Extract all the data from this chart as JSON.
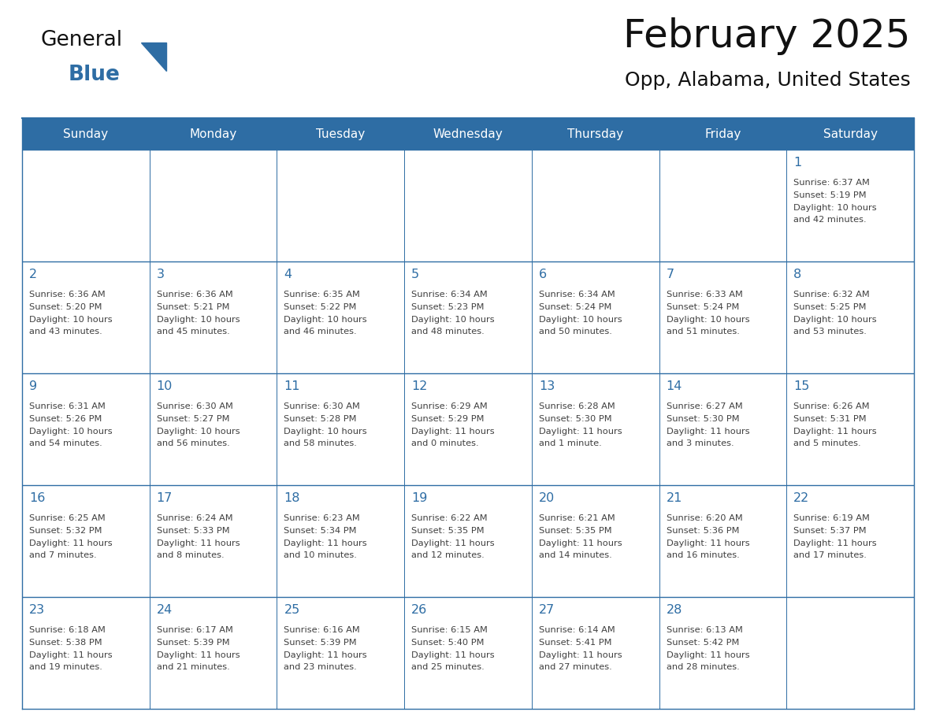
{
  "title": "February 2025",
  "subtitle": "Opp, Alabama, United States",
  "header_bg": "#2E6DA4",
  "header_text_color": "#FFFFFF",
  "cell_bg": "#FFFFFF",
  "day_number_color": "#2E6DA4",
  "cell_text_color": "#404040",
  "line_color": "#2E6DA4",
  "days_of_week": [
    "Sunday",
    "Monday",
    "Tuesday",
    "Wednesday",
    "Thursday",
    "Friday",
    "Saturday"
  ],
  "calendar_data": [
    [
      null,
      null,
      null,
      null,
      null,
      null,
      {
        "day": "1",
        "sunrise": "6:37 AM",
        "sunset": "5:19 PM",
        "daylight1": "Daylight: 10 hours",
        "daylight2": "and 42 minutes."
      }
    ],
    [
      {
        "day": "2",
        "sunrise": "6:36 AM",
        "sunset": "5:20 PM",
        "daylight1": "Daylight: 10 hours",
        "daylight2": "and 43 minutes."
      },
      {
        "day": "3",
        "sunrise": "6:36 AM",
        "sunset": "5:21 PM",
        "daylight1": "Daylight: 10 hours",
        "daylight2": "and 45 minutes."
      },
      {
        "day": "4",
        "sunrise": "6:35 AM",
        "sunset": "5:22 PM",
        "daylight1": "Daylight: 10 hours",
        "daylight2": "and 46 minutes."
      },
      {
        "day": "5",
        "sunrise": "6:34 AM",
        "sunset": "5:23 PM",
        "daylight1": "Daylight: 10 hours",
        "daylight2": "and 48 minutes."
      },
      {
        "day": "6",
        "sunrise": "6:34 AM",
        "sunset": "5:24 PM",
        "daylight1": "Daylight: 10 hours",
        "daylight2": "and 50 minutes."
      },
      {
        "day": "7",
        "sunrise": "6:33 AM",
        "sunset": "5:24 PM",
        "daylight1": "Daylight: 10 hours",
        "daylight2": "and 51 minutes."
      },
      {
        "day": "8",
        "sunrise": "6:32 AM",
        "sunset": "5:25 PM",
        "daylight1": "Daylight: 10 hours",
        "daylight2": "and 53 minutes."
      }
    ],
    [
      {
        "day": "9",
        "sunrise": "6:31 AM",
        "sunset": "5:26 PM",
        "daylight1": "Daylight: 10 hours",
        "daylight2": "and 54 minutes."
      },
      {
        "day": "10",
        "sunrise": "6:30 AM",
        "sunset": "5:27 PM",
        "daylight1": "Daylight: 10 hours",
        "daylight2": "and 56 minutes."
      },
      {
        "day": "11",
        "sunrise": "6:30 AM",
        "sunset": "5:28 PM",
        "daylight1": "Daylight: 10 hours",
        "daylight2": "and 58 minutes."
      },
      {
        "day": "12",
        "sunrise": "6:29 AM",
        "sunset": "5:29 PM",
        "daylight1": "Daylight: 11 hours",
        "daylight2": "and 0 minutes."
      },
      {
        "day": "13",
        "sunrise": "6:28 AM",
        "sunset": "5:30 PM",
        "daylight1": "Daylight: 11 hours",
        "daylight2": "and 1 minute."
      },
      {
        "day": "14",
        "sunrise": "6:27 AM",
        "sunset": "5:30 PM",
        "daylight1": "Daylight: 11 hours",
        "daylight2": "and 3 minutes."
      },
      {
        "day": "15",
        "sunrise": "6:26 AM",
        "sunset": "5:31 PM",
        "daylight1": "Daylight: 11 hours",
        "daylight2": "and 5 minutes."
      }
    ],
    [
      {
        "day": "16",
        "sunrise": "6:25 AM",
        "sunset": "5:32 PM",
        "daylight1": "Daylight: 11 hours",
        "daylight2": "and 7 minutes."
      },
      {
        "day": "17",
        "sunrise": "6:24 AM",
        "sunset": "5:33 PM",
        "daylight1": "Daylight: 11 hours",
        "daylight2": "and 8 minutes."
      },
      {
        "day": "18",
        "sunrise": "6:23 AM",
        "sunset": "5:34 PM",
        "daylight1": "Daylight: 11 hours",
        "daylight2": "and 10 minutes."
      },
      {
        "day": "19",
        "sunrise": "6:22 AM",
        "sunset": "5:35 PM",
        "daylight1": "Daylight: 11 hours",
        "daylight2": "and 12 minutes."
      },
      {
        "day": "20",
        "sunrise": "6:21 AM",
        "sunset": "5:35 PM",
        "daylight1": "Daylight: 11 hours",
        "daylight2": "and 14 minutes."
      },
      {
        "day": "21",
        "sunrise": "6:20 AM",
        "sunset": "5:36 PM",
        "daylight1": "Daylight: 11 hours",
        "daylight2": "and 16 minutes."
      },
      {
        "day": "22",
        "sunrise": "6:19 AM",
        "sunset": "5:37 PM",
        "daylight1": "Daylight: 11 hours",
        "daylight2": "and 17 minutes."
      }
    ],
    [
      {
        "day": "23",
        "sunrise": "6:18 AM",
        "sunset": "5:38 PM",
        "daylight1": "Daylight: 11 hours",
        "daylight2": "and 19 minutes."
      },
      {
        "day": "24",
        "sunrise": "6:17 AM",
        "sunset": "5:39 PM",
        "daylight1": "Daylight: 11 hours",
        "daylight2": "and 21 minutes."
      },
      {
        "day": "25",
        "sunrise": "6:16 AM",
        "sunset": "5:39 PM",
        "daylight1": "Daylight: 11 hours",
        "daylight2": "and 23 minutes."
      },
      {
        "day": "26",
        "sunrise": "6:15 AM",
        "sunset": "5:40 PM",
        "daylight1": "Daylight: 11 hours",
        "daylight2": "and 25 minutes."
      },
      {
        "day": "27",
        "sunrise": "6:14 AM",
        "sunset": "5:41 PM",
        "daylight1": "Daylight: 11 hours",
        "daylight2": "and 27 minutes."
      },
      {
        "day": "28",
        "sunrise": "6:13 AM",
        "sunset": "5:42 PM",
        "daylight1": "Daylight: 11 hours",
        "daylight2": "and 28 minutes."
      },
      null
    ]
  ],
  "logo_general_color": "#111111",
  "logo_blue_color": "#2E6DA4",
  "background_color": "#FFFFFF"
}
